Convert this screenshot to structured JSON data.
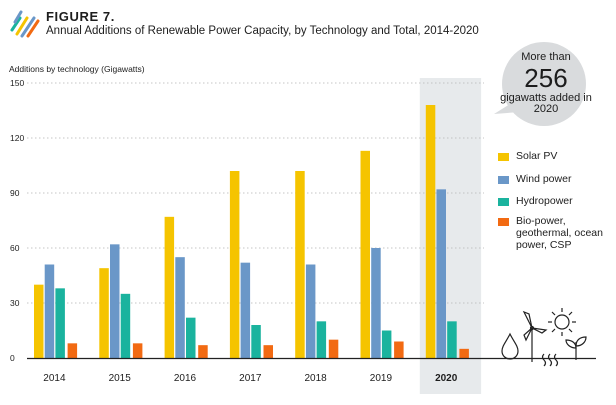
{
  "figure": {
    "label": "FIGURE 7.",
    "title": "Annual Additions of Renewable Power Capacity, by Technology and Total, 2014-2020"
  },
  "callout": {
    "pre": "More than",
    "number": "256",
    "post": "gigawatts added in 2020"
  },
  "colors": {
    "solar": "#f5c400",
    "wind": "#6a97c8",
    "hydro": "#1ab39e",
    "bio": "#f26a12",
    "highlight": "#e7eaec",
    "axis": "#222222",
    "grid": "#b4b4b4"
  },
  "chart_data": {
    "type": "bar",
    "title": "Annual Additions of Renewable Power Capacity, by Technology and Total, 2014-2020",
    "xlabel": "",
    "ylabel": "Additions by technology (Gigawatts)",
    "ylim": [
      0,
      150
    ],
    "yticks": [
      0,
      30,
      60,
      90,
      120,
      150
    ],
    "grid": true,
    "legend_position": "right",
    "highlight_category": "2020",
    "categories": [
      "2014",
      "2015",
      "2016",
      "2017",
      "2018",
      "2019",
      "2020"
    ],
    "series": [
      {
        "name": "Solar PV",
        "key": "solar",
        "values": [
          40,
          49,
          77,
          102,
          102,
          113,
          138
        ]
      },
      {
        "name": "Wind power",
        "key": "wind",
        "values": [
          51,
          62,
          55,
          52,
          51,
          60,
          92
        ]
      },
      {
        "name": "Hydropower",
        "key": "hydro",
        "values": [
          38,
          35,
          22,
          18,
          20,
          15,
          20
        ]
      },
      {
        "name": "Bio-power, geothermal, ocean power, CSP",
        "key": "bio",
        "values": [
          8,
          8,
          7,
          7,
          10,
          9,
          5
        ]
      }
    ]
  }
}
